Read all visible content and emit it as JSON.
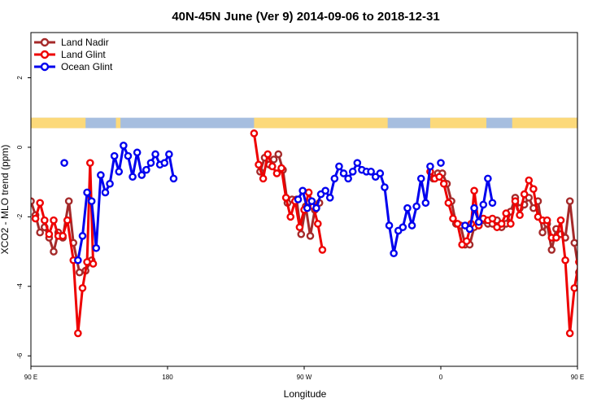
{
  "chart_data": {
    "type": "line",
    "title": "40N-45N June (Ver 9)   2014-09-06 to 2018-12-31",
    "xlabel": "Longitude",
    "ylabel": "XCO2 - MLO trend (ppm)",
    "xlim": [
      90,
      450
    ],
    "ylim": [
      -6.3,
      3.3
    ],
    "x_ticks": [
      {
        "value": 90,
        "label": "90 E"
      },
      {
        "value": 180,
        "label": "180"
      },
      {
        "value": 270,
        "label": "90 W"
      },
      {
        "value": 360,
        "label": "0"
      },
      {
        "value": 450,
        "label": "90 E"
      },
      {
        "value": 540,
        "label": "180"
      }
    ],
    "y_ticks": [
      {
        "value": 2,
        "label": "2"
      },
      {
        "value": 0,
        "label": "0"
      },
      {
        "value": -2,
        "label": "-2"
      },
      {
        "value": -4,
        "label": "-4"
      },
      {
        "value": -6,
        "label": "-6"
      }
    ],
    "legend_position": "top-left",
    "land_sea_strip": {
      "y_range": [
        0.55,
        0.85
      ],
      "land_color": "#fcd97a",
      "ocean_color": "#a6bedf",
      "land_lon_ranges": [
        [
          90,
          126
        ],
        [
          146,
          149
        ],
        [
          237,
          325
        ],
        [
          353,
          390
        ],
        [
          407,
          450
        ]
      ]
    },
    "series": [
      {
        "name": "Land Nadir",
        "color": "#a52a2a",
        "points": [
          [
            90,
            -1.55
          ],
          [
            93,
            -1.95
          ],
          [
            96,
            -2.45
          ],
          [
            99,
            -2.3
          ],
          [
            102,
            -2.6
          ],
          [
            105,
            -3
          ],
          [
            108,
            -2.45
          ],
          [
            111,
            -2.6
          ],
          [
            115,
            -1.55
          ],
          [
            118,
            -2.75
          ],
          [
            122,
            -3.6
          ],
          [
            126,
            -3.55
          ],
          [
            130,
            -3.25
          ],
          [
            241,
            -0.7
          ],
          [
            244,
            -0.3
          ],
          [
            247,
            -0.5
          ],
          [
            250,
            -0.35
          ],
          [
            253,
            -0.2
          ],
          [
            256,
            -0.65
          ],
          [
            259,
            -1.6
          ],
          [
            262,
            -1.5
          ],
          [
            265,
            -1.5
          ],
          [
            268,
            -2.5
          ],
          [
            271,
            -1.7
          ],
          [
            274,
            -2.55
          ],
          [
            277,
            -1.8
          ],
          [
            280,
            -1.6
          ],
          [
            355,
            -0.9
          ],
          [
            358,
            -0.75
          ],
          [
            361,
            -0.75
          ],
          [
            364,
            -1.05
          ],
          [
            367,
            -1.55
          ],
          [
            370,
            -2.2
          ],
          [
            373,
            -2.25
          ],
          [
            376,
            -2.8
          ],
          [
            379,
            -2.8
          ],
          [
            382,
            -2.3
          ],
          [
            385,
            -2.25
          ],
          [
            388,
            -2.1
          ],
          [
            391,
            -2.2
          ],
          [
            394,
            -2.2
          ],
          [
            397,
            -2.1
          ],
          [
            400,
            -2.3
          ],
          [
            403,
            -2.2
          ],
          [
            406,
            -1.85
          ],
          [
            409,
            -1.45
          ],
          [
            412,
            -1.75
          ],
          [
            415,
            -1.65
          ],
          [
            418,
            -1.45
          ],
          [
            421,
            -1.75
          ],
          [
            424,
            -1.55
          ],
          [
            427,
            -2.45
          ],
          [
            430,
            -2.2
          ],
          [
            433,
            -2.95
          ],
          [
            436,
            -2.35
          ],
          [
            439,
            -2.5
          ],
          [
            442,
            -2.6
          ],
          [
            445,
            -1.55
          ],
          [
            448,
            -2.75
          ],
          [
            451,
            -3.6
          ],
          [
            454,
            -3.55
          ],
          [
            457,
            -3.25
          ]
        ]
      },
      {
        "name": "Land Glint",
        "color": "#ee0000",
        "points": [
          [
            93,
            -2.05
          ],
          [
            96,
            -1.6
          ],
          [
            99,
            -2.1
          ],
          [
            102,
            -2.5
          ],
          [
            105,
            -2.1
          ],
          [
            108,
            -2.55
          ],
          [
            111,
            -2.55
          ],
          [
            114,
            -2.1
          ],
          [
            118,
            -3.25
          ],
          [
            121,
            -5.35
          ],
          [
            124,
            -4.05
          ],
          [
            127,
            -3.3
          ],
          [
            129,
            -0.45
          ],
          [
            131,
            -3.35
          ],
          [
            237,
            0.4
          ],
          [
            240,
            -0.5
          ],
          [
            243,
            -0.9
          ],
          [
            246,
            -0.2
          ],
          [
            249,
            -0.55
          ],
          [
            252,
            -0.75
          ],
          [
            255,
            -0.6
          ],
          [
            258,
            -1.45
          ],
          [
            261,
            -2
          ],
          [
            264,
            -1.55
          ],
          [
            267,
            -2.3
          ],
          [
            270,
            -1.8
          ],
          [
            273,
            -1.3
          ],
          [
            276,
            -1.7
          ],
          [
            279,
            -2.2
          ],
          [
            282,
            -2.95
          ],
          [
            353,
            -0.7
          ],
          [
            356,
            -0.9
          ],
          [
            359,
            -0.85
          ],
          [
            362,
            -1.05
          ],
          [
            365,
            -1.6
          ],
          [
            368,
            -2.05
          ],
          [
            371,
            -2.2
          ],
          [
            374,
            -2.8
          ],
          [
            377,
            -2.7
          ],
          [
            380,
            -2.2
          ],
          [
            382,
            -1.25
          ],
          [
            385,
            -2.25
          ],
          [
            388,
            -2.05
          ],
          [
            391,
            -2.1
          ],
          [
            394,
            -2.05
          ],
          [
            397,
            -2.3
          ],
          [
            400,
            -2.2
          ],
          [
            403,
            -1.9
          ],
          [
            406,
            -2.2
          ],
          [
            409,
            -1.55
          ],
          [
            412,
            -1.95
          ],
          [
            415,
            -1.35
          ],
          [
            418,
            -0.95
          ],
          [
            421,
            -1.2
          ],
          [
            424,
            -2
          ],
          [
            427,
            -2.1
          ],
          [
            430,
            -2.1
          ],
          [
            433,
            -2.6
          ],
          [
            436,
            -2.6
          ],
          [
            439,
            -2.1
          ],
          [
            442,
            -3.25
          ],
          [
            445,
            -5.35
          ],
          [
            448,
            -4.05
          ],
          [
            451,
            -3.3
          ],
          [
            453,
            -0.45
          ],
          [
            455,
            -3.35
          ]
        ]
      },
      {
        "name": "Ocean Glint",
        "color": "#0000ee",
        "points": [
          [
            112,
            -0.45
          ],
          [
            121,
            -3.25
          ],
          [
            124,
            -2.55
          ],
          [
            127,
            -1.3
          ],
          [
            130,
            -1.55
          ],
          [
            133,
            -2.9
          ],
          [
            136,
            -0.8
          ],
          [
            139,
            -1.3
          ],
          [
            142,
            -1.05
          ],
          [
            145,
            -0.25
          ],
          [
            148,
            -0.7
          ],
          [
            151,
            0.05
          ],
          [
            154,
            -0.25
          ],
          [
            157,
            -0.85
          ],
          [
            160,
            -0.15
          ],
          [
            163,
            -0.8
          ],
          [
            166,
            -0.65
          ],
          [
            169,
            -0.45
          ],
          [
            172,
            -0.2
          ],
          [
            175,
            -0.5
          ],
          [
            178,
            -0.45
          ],
          [
            181,
            -0.2
          ],
          [
            184,
            -0.9
          ],
          [
            266,
            -1.5
          ],
          [
            269,
            -1.25
          ],
          [
            272,
            -1.75
          ],
          [
            275,
            -1.55
          ],
          [
            278,
            -1.75
          ],
          [
            281,
            -1.35
          ],
          [
            284,
            -1.25
          ],
          [
            287,
            -1.45
          ],
          [
            290,
            -0.9
          ],
          [
            293,
            -0.55
          ],
          [
            296,
            -0.75
          ],
          [
            299,
            -0.9
          ],
          [
            302,
            -0.7
          ],
          [
            305,
            -0.45
          ],
          [
            308,
            -0.65
          ],
          [
            311,
            -0.7
          ],
          [
            314,
            -0.7
          ],
          [
            317,
            -0.85
          ],
          [
            320,
            -0.75
          ],
          [
            323,
            -1.15
          ],
          [
            326,
            -2.25
          ],
          [
            329,
            -3.05
          ],
          [
            332,
            -2.4
          ],
          [
            335,
            -2.3
          ],
          [
            338,
            -1.75
          ],
          [
            341,
            -2.25
          ],
          [
            344,
            -1.7
          ],
          [
            347,
            -0.9
          ],
          [
            350,
            -1.6
          ],
          [
            353,
            -0.55
          ],
          [
            360,
            -0.45
          ],
          [
            376,
            -2.25
          ],
          [
            379,
            -2.35
          ],
          [
            382,
            -1.75
          ],
          [
            385,
            -2.15
          ],
          [
            388,
            -1.65
          ],
          [
            391,
            -0.9
          ],
          [
            394,
            -1.6
          ]
        ]
      }
    ]
  }
}
